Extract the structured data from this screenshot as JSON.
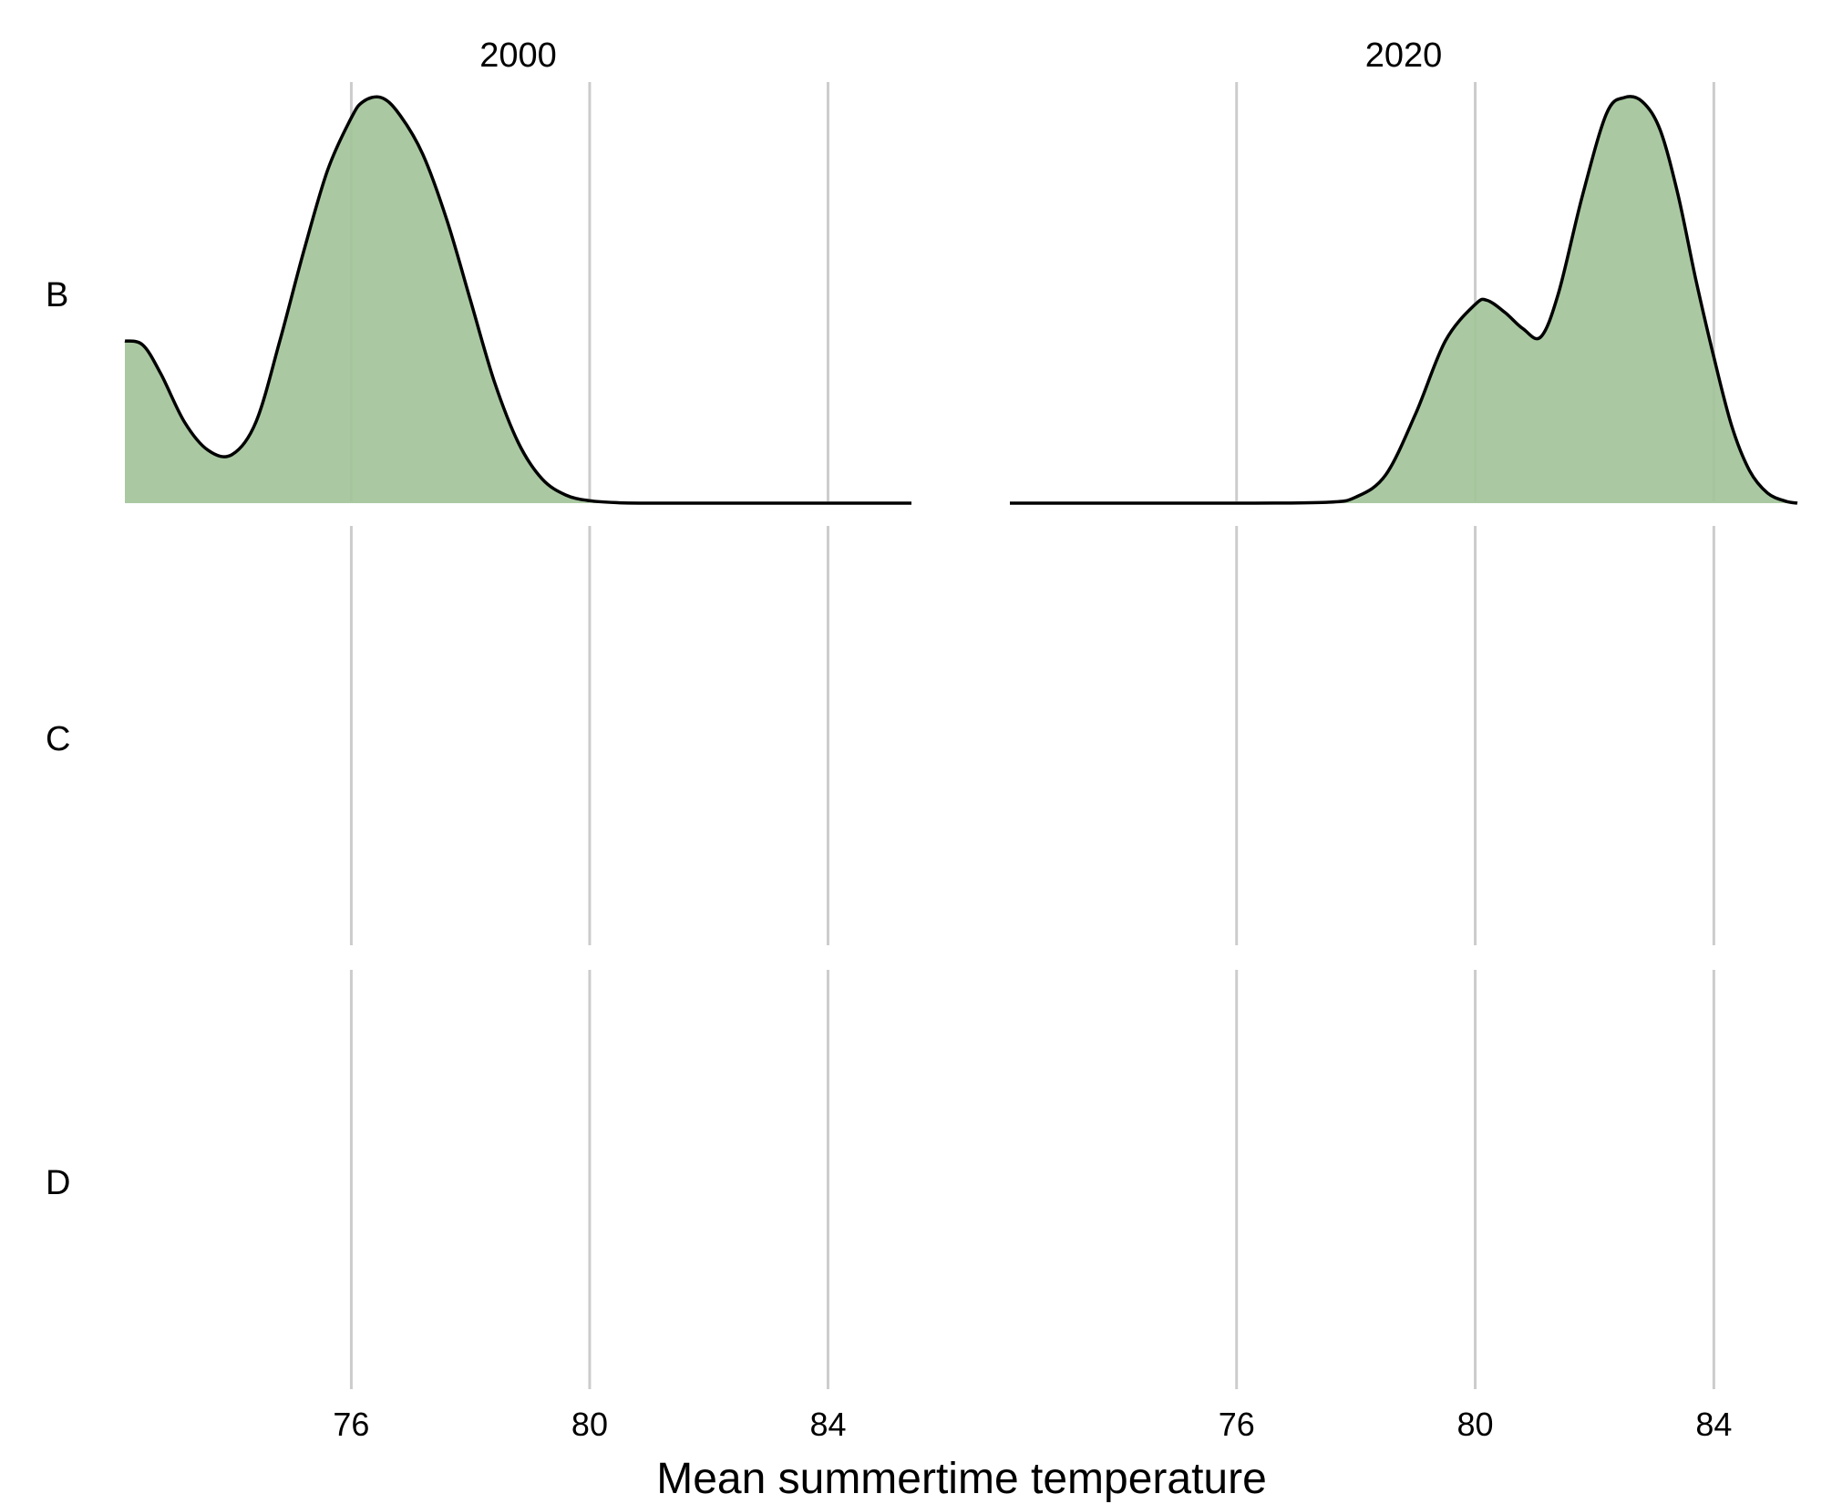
{
  "chart_data": {
    "type": "area",
    "subtype": "faceted density (ridgeline) plot",
    "xlabel": "Mean summertime temperature",
    "xlim": [
      72.2,
      85.4
    ],
    "x_ticks": [
      76,
      80,
      84
    ],
    "columns": [
      "2000",
      "2020"
    ],
    "rows": [
      "B",
      "C",
      "D"
    ],
    "fill_color": "#a3c49a",
    "line_color": "#000000",
    "grid_color": "#cccccc",
    "grid": "vertical lines at x ticks",
    "densities": [
      {
        "row": "B",
        "column": "2000",
        "x": [
          72.2,
          72.5,
          72.8,
          73.2,
          73.6,
          74.0,
          74.4,
          74.8,
          75.2,
          75.6,
          76.0,
          76.2,
          76.5,
          76.8,
          77.2,
          77.6,
          78.0,
          78.4,
          78.8,
          79.2,
          79.6,
          80.0,
          80.5,
          81.0,
          82.0,
          84.0,
          85.4
        ],
        "density": [
          0.4,
          0.39,
          0.32,
          0.2,
          0.13,
          0.12,
          0.2,
          0.4,
          0.62,
          0.82,
          0.95,
          0.99,
          1.0,
          0.96,
          0.86,
          0.7,
          0.5,
          0.3,
          0.15,
          0.06,
          0.02,
          0.006,
          0.001,
          0.0,
          0.0,
          0.0,
          0.0
        ]
      },
      {
        "row": "B",
        "column": "2020",
        "x": [
          72.2,
          76.0,
          77.5,
          78.0,
          78.5,
          79.0,
          79.5,
          80.0,
          80.2,
          80.5,
          80.8,
          81.1,
          81.4,
          81.8,
          82.2,
          82.5,
          82.8,
          83.1,
          83.4,
          83.7,
          84.0,
          84.3,
          84.6,
          84.9,
          85.2,
          85.4
        ],
        "density": [
          0.0,
          0.0,
          0.002,
          0.015,
          0.07,
          0.22,
          0.4,
          0.49,
          0.5,
          0.47,
          0.43,
          0.41,
          0.52,
          0.76,
          0.96,
          1.0,
          0.99,
          0.92,
          0.76,
          0.55,
          0.36,
          0.19,
          0.08,
          0.025,
          0.005,
          0.0
        ]
      },
      {
        "row": "C",
        "column": "2000",
        "x": [],
        "density": []
      },
      {
        "row": "C",
        "column": "2020",
        "x": [],
        "density": []
      },
      {
        "row": "D",
        "column": "2000",
        "x": [],
        "density": []
      },
      {
        "row": "D",
        "column": "2020",
        "x": [],
        "density": []
      }
    ]
  }
}
